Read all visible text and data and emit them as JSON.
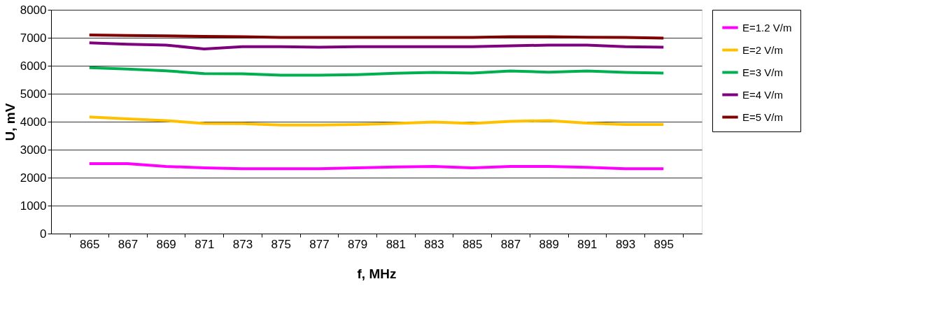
{
  "chart_data": {
    "type": "line",
    "xlabel": "f, MHz",
    "ylabel": "U, mV",
    "categories": [
      "865",
      "867",
      "869",
      "871",
      "873",
      "875",
      "877",
      "879",
      "881",
      "883",
      "885",
      "887",
      "889",
      "891",
      "893",
      "895"
    ],
    "ylim": [
      0,
      8000
    ],
    "yticks": [
      0,
      1000,
      2000,
      3000,
      4000,
      5000,
      6000,
      7000,
      8000
    ],
    "grid": "y",
    "legend": "right",
    "marker": "none",
    "line_style": "solid",
    "series": [
      {
        "name": "E=1.2 V/m",
        "color": "#ff00ff",
        "values": [
          2500,
          2500,
          2400,
          2350,
          2320,
          2320,
          2320,
          2350,
          2380,
          2400,
          2350,
          2400,
          2400,
          2370,
          2320,
          2320
        ]
      },
      {
        "name": "E=2 V/m",
        "color": "#ffc000",
        "values": [
          4170,
          4100,
          4040,
          3940,
          3930,
          3880,
          3880,
          3900,
          3940,
          3990,
          3940,
          4010,
          4040,
          3950,
          3900,
          3900
        ]
      },
      {
        "name": "E=3 V/m",
        "color": "#00b050",
        "values": [
          5930,
          5880,
          5820,
          5720,
          5710,
          5660,
          5660,
          5680,
          5730,
          5760,
          5740,
          5810,
          5770,
          5810,
          5760,
          5740
        ]
      },
      {
        "name": "E=4 V/m",
        "color": "#7f007f",
        "values": [
          6820,
          6770,
          6740,
          6600,
          6680,
          6680,
          6660,
          6680,
          6680,
          6680,
          6680,
          6710,
          6740,
          6740,
          6680,
          6660
        ]
      },
      {
        "name": "E=5 V/m",
        "color": "#800000",
        "values": [
          7100,
          7080,
          7070,
          7050,
          7040,
          7010,
          7010,
          7010,
          7010,
          7010,
          7010,
          7040,
          7040,
          7020,
          7010,
          6990
        ]
      }
    ]
  }
}
